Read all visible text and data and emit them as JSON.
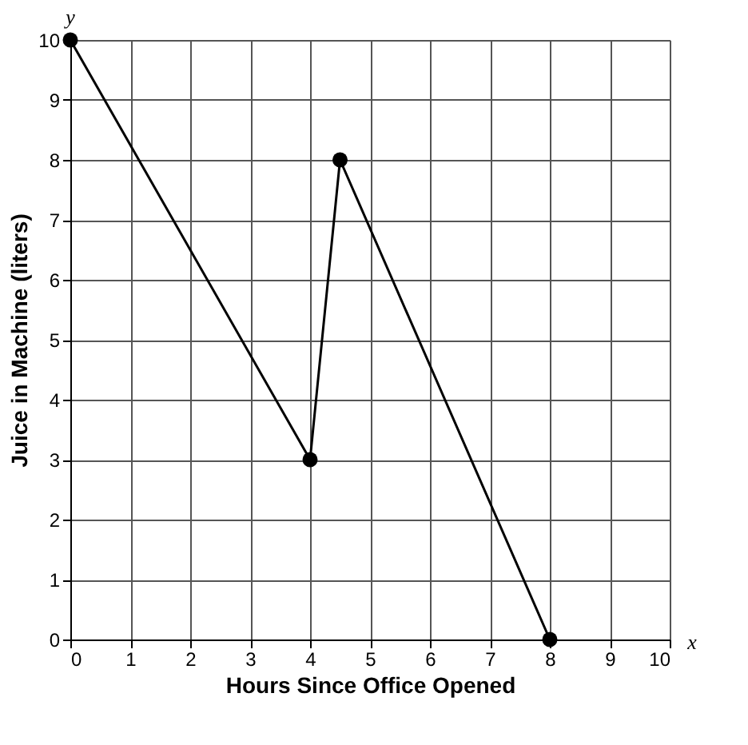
{
  "chart_data": {
    "type": "line",
    "xlabel": "Hours Since Office Opened",
    "ylabel": "Juice in Machine (liters)",
    "x": [
      0,
      4,
      4.5,
      8
    ],
    "series": [
      {
        "color": "#000000",
        "values": [
          10,
          3,
          8,
          0
        ]
      }
    ],
    "xlim": [
      0,
      10
    ],
    "xticks": [
      0,
      1,
      2,
      3,
      4,
      5,
      6,
      7,
      8,
      9,
      10
    ],
    "ylim": [
      0,
      10
    ],
    "yticks": [
      0,
      1,
      2,
      3,
      4,
      5,
      6,
      7,
      8,
      9,
      10
    ],
    "grid": true,
    "marker": "circle",
    "line_style": "solid",
    "annotations": [
      "y",
      "x"
    ]
  }
}
